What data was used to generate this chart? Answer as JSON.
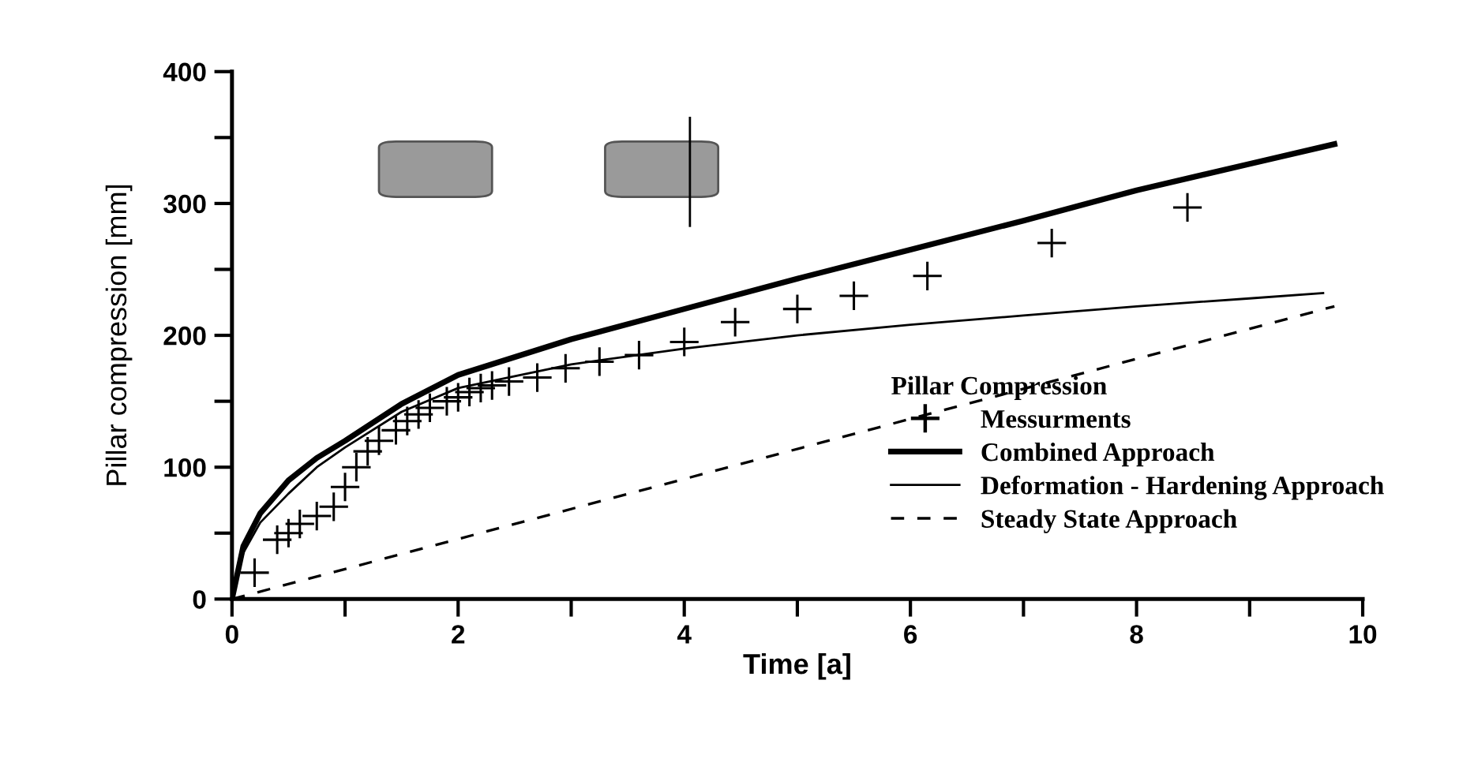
{
  "chart_data": {
    "type": "line",
    "xlabel": "Time [a]",
    "ylabel": "Pillar compression [mm]",
    "legend_title": "Pillar Compression",
    "legend": "bottom right",
    "grid": false,
    "xlim": [
      0,
      10
    ],
    "ylim": [
      0,
      400
    ],
    "xticks": [
      0,
      {
        "value": 1,
        "label": null
      },
      2,
      {
        "value": 3,
        "label": null
      },
      4,
      {
        "value": 5,
        "label": null
      },
      6,
      {
        "value": 7,
        "label": null
      },
      8,
      {
        "value": 9,
        "label": null
      },
      10
    ],
    "yticks": [
      0,
      {
        "value": 50,
        "label": null
      },
      100,
      {
        "value": 150,
        "label": null
      },
      200,
      {
        "value": 250,
        "label": null
      },
      300,
      {
        "value": 350,
        "label": null
      },
      400
    ],
    "series": [
      {
        "name": "Messurments",
        "type": "scatter",
        "marker": "cross",
        "color": "#000000",
        "x": [
          0.2,
          0.4,
          0.5,
          0.6,
          0.75,
          0.9,
          1.0,
          1.1,
          1.2,
          1.3,
          1.45,
          1.55,
          1.65,
          1.75,
          1.9,
          2.0,
          2.1,
          2.2,
          2.3,
          2.45,
          2.7,
          2.95,
          3.25,
          3.6,
          4.0,
          4.45,
          5.0,
          5.5,
          6.15,
          7.25,
          8.45
        ],
        "values": [
          20,
          45,
          50,
          57,
          63,
          70,
          85,
          100,
          112,
          120,
          128,
          135,
          140,
          145,
          150,
          153,
          157,
          160,
          162,
          165,
          168,
          175,
          180,
          185,
          195,
          210,
          220,
          230,
          245,
          270,
          297
        ]
      },
      {
        "name": "Combined Approach",
        "line_style": "solid",
        "color": "#000000",
        "x": [
          0,
          0.1,
          0.25,
          0.5,
          0.75,
          1,
          1.5,
          2,
          3,
          4,
          5,
          6,
          7,
          8,
          9,
          9.75
        ],
        "values": [
          0,
          40,
          65,
          90,
          107,
          120,
          148,
          170,
          197,
          220,
          243,
          265,
          287,
          310,
          330,
          345
        ]
      },
      {
        "name": "Deformation - Hardening Approach",
        "line_style": "solid",
        "color": "#000000",
        "x": [
          0,
          0.1,
          0.25,
          0.5,
          0.75,
          1,
          1.5,
          2,
          3,
          4,
          5,
          6,
          7,
          8,
          9,
          9.65
        ],
        "values": [
          0,
          35,
          58,
          80,
          100,
          115,
          142,
          160,
          178,
          190,
          200,
          208,
          215,
          222,
          228,
          232
        ]
      },
      {
        "name": "Steady State Approach",
        "line_style": "dashed",
        "color": "#000000",
        "x": [
          0,
          9.75
        ],
        "values": [
          0,
          222
        ]
      }
    ]
  }
}
